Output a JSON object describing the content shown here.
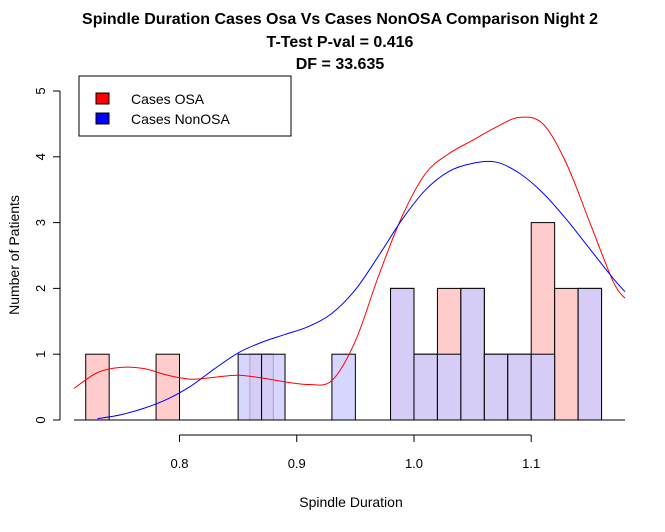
{
  "chart_data": {
    "type": "bar",
    "title": "Spindle Duration Cases Osa Vs Cases NonOSA Comparison Night 2",
    "subtitle_lines": [
      "T-Test P-val = 0.416",
      "DF = 33.635"
    ],
    "xlabel": "Spindle Duration",
    "ylabel": "Number of Patients",
    "xlim": [
      0.71,
      1.18
    ],
    "ylim": [
      0,
      5
    ],
    "x_ticks": [
      0.8,
      0.9,
      1.0,
      1.1
    ],
    "x_tick_labels": [
      "0.8",
      "0.9",
      "1.0",
      "1.1"
    ],
    "y_ticks": [
      0,
      1,
      2,
      3,
      4,
      5
    ],
    "y_tick_labels": [
      "0",
      "1",
      "2",
      "3",
      "4",
      "5"
    ],
    "bin_width": 0.02,
    "legend_position": "top-left",
    "series": [
      {
        "name": "Cases OSA",
        "color": "#ff0000",
        "fill": "#ffcccc",
        "bins": [
          {
            "start": 0.72,
            "count": 1
          },
          {
            "start": 0.78,
            "count": 1
          },
          {
            "start": 0.86,
            "count": 1
          },
          {
            "start": 0.98,
            "count": 2
          },
          {
            "start": 1.0,
            "count": 1
          },
          {
            "start": 1.02,
            "count": 2
          },
          {
            "start": 1.04,
            "count": 2
          },
          {
            "start": 1.06,
            "count": 1
          },
          {
            "start": 1.08,
            "count": 1
          },
          {
            "start": 1.1,
            "count": 3
          },
          {
            "start": 1.12,
            "count": 2
          },
          {
            "start": 1.14,
            "count": 2
          }
        ],
        "density_curve": {
          "x": [
            0.71,
            0.73,
            0.75,
            0.77,
            0.79,
            0.81,
            0.83,
            0.85,
            0.87,
            0.89,
            0.91,
            0.93,
            0.95,
            0.97,
            0.99,
            1.01,
            1.03,
            1.05,
            1.07,
            1.09,
            1.11,
            1.13,
            1.15,
            1.17,
            1.18
          ],
          "y": [
            0.48,
            0.72,
            0.8,
            0.78,
            0.68,
            0.62,
            0.65,
            0.68,
            0.64,
            0.58,
            0.54,
            0.6,
            1.2,
            2.2,
            3.1,
            3.75,
            4.05,
            4.25,
            4.45,
            4.6,
            4.5,
            3.9,
            3.0,
            2.1,
            1.85
          ]
        }
      },
      {
        "name": "Cases NonOSA",
        "color": "#0000ff",
        "fill": "#ccccff",
        "bins": [
          {
            "start": 0.85,
            "count": 1
          },
          {
            "start": 0.87,
            "count": 1
          },
          {
            "start": 0.93,
            "count": 1
          },
          {
            "start": 0.98,
            "count": 2
          },
          {
            "start": 1.0,
            "count": 1
          },
          {
            "start": 1.02,
            "count": 1
          },
          {
            "start": 1.04,
            "count": 2
          },
          {
            "start": 1.06,
            "count": 1
          },
          {
            "start": 1.08,
            "count": 1
          },
          {
            "start": 1.1,
            "count": 1
          },
          {
            "start": 1.14,
            "count": 2
          }
        ],
        "density_curve": {
          "x": [
            0.73,
            0.75,
            0.77,
            0.79,
            0.81,
            0.83,
            0.85,
            0.87,
            0.89,
            0.91,
            0.93,
            0.95,
            0.97,
            0.99,
            1.01,
            1.03,
            1.05,
            1.07,
            1.09,
            1.11,
            1.13,
            1.15,
            1.17,
            1.18
          ],
          "y": [
            0.02,
            0.08,
            0.18,
            0.32,
            0.52,
            0.78,
            1.02,
            1.18,
            1.3,
            1.42,
            1.62,
            1.98,
            2.5,
            3.05,
            3.5,
            3.78,
            3.9,
            3.92,
            3.75,
            3.45,
            3.05,
            2.6,
            2.15,
            1.95
          ]
        }
      }
    ]
  }
}
